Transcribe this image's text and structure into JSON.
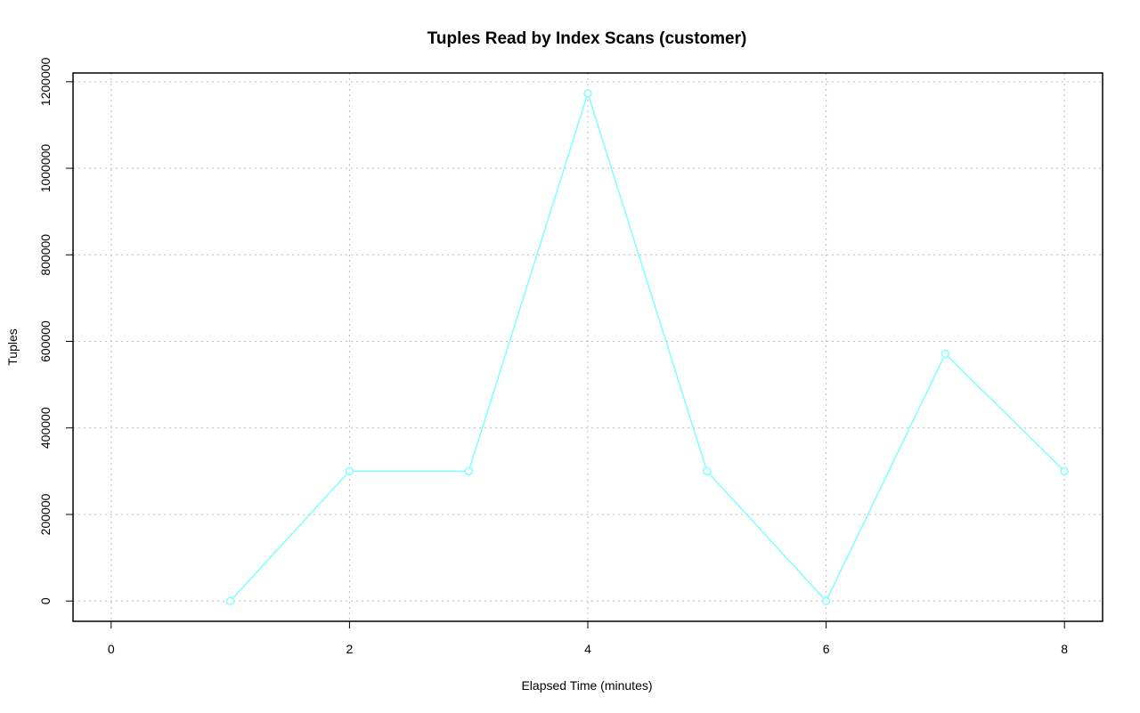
{
  "chart_data": {
    "type": "line",
    "title": "Tuples Read by Index Scans (customer)",
    "x_label": "Elapsed Time (minutes)",
    "y_label": "Tuples",
    "x": [
      1,
      2,
      3,
      4,
      5,
      6,
      7,
      8
    ],
    "series": [
      {
        "name": "customer",
        "color": "#7fffff",
        "values": [
          0,
          300000,
          300000,
          1173000,
          300000,
          0,
          571000,
          300000
        ]
      }
    ],
    "xlim": [
      -0.32,
      8.32
    ],
    "xticks": [
      0,
      2,
      4,
      6,
      8
    ],
    "ylim": [
      -46900,
      1220200
    ],
    "yticks": [
      0,
      200000,
      400000,
      600000,
      800000,
      1000000,
      1200000
    ],
    "grid": true
  }
}
